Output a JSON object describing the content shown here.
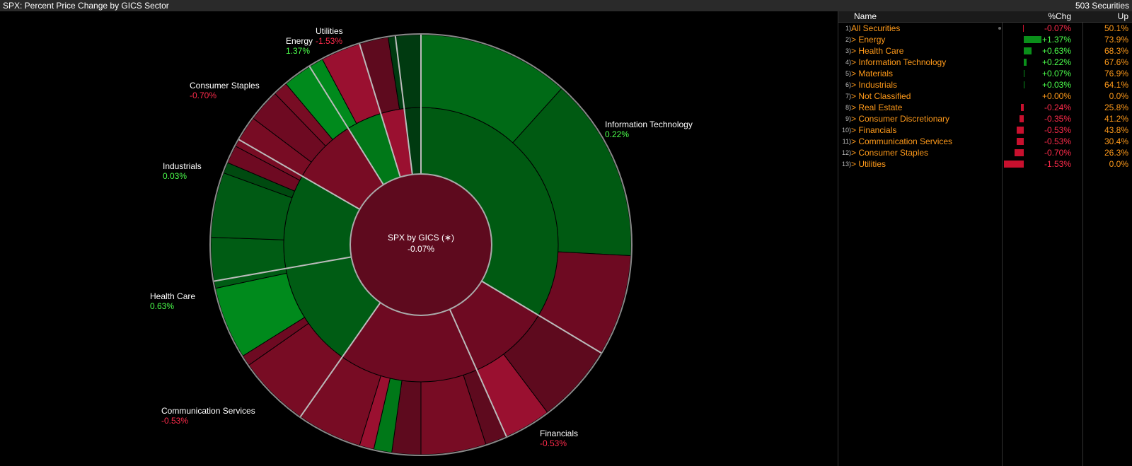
{
  "header": {
    "title": "SPX: Percent Price Change by GICS Sector",
    "count": "503 Securities"
  },
  "center": {
    "label": "SPX by GICS (∗)",
    "value": "-0.07%"
  },
  "chart_data": {
    "type": "sunburst",
    "rings": [
      {
        "sector": "Information Technology",
        "change": 0.22
      },
      {
        "sector": "Financials",
        "change": -0.53
      },
      {
        "sector": "Communication Services",
        "change": -0.53
      },
      {
        "sector": "Health Care",
        "change": 0.63
      },
      {
        "sector": "Industrials",
        "change": 0.03
      },
      {
        "sector": "Consumer Staples",
        "change": -0.7
      },
      {
        "sector": "Energy",
        "change": 1.37
      },
      {
        "sector": "Utilities",
        "change": -1.53
      }
    ],
    "labels": [
      {
        "name": "Information Technology",
        "value": "0.22%",
        "sign": "pos"
      },
      {
        "name": "Financials",
        "value": "-0.53%",
        "sign": "neg"
      },
      {
        "name": "Communication Services",
        "value": "-0.53%",
        "sign": "neg"
      },
      {
        "name": "Health Care",
        "value": "0.63%",
        "sign": "pos"
      },
      {
        "name": "Industrials",
        "value": "0.03%",
        "sign": "pos"
      },
      {
        "name": "Consumer Staples",
        "value": "-0.70%",
        "sign": "neg"
      },
      {
        "name": "Energy",
        "value": "1.37%",
        "sign": "pos"
      },
      {
        "name": "Utilities",
        "value": "-1.53%",
        "sign": "neg"
      }
    ]
  },
  "table": {
    "columns": {
      "name": "Name",
      "chg": "%Chg",
      "up": "Up"
    },
    "rows": [
      {
        "idx": "1)",
        "name": "All Securities",
        "chg": "-0.07%",
        "up": "50.1%",
        "value": -0.07,
        "sign": "neg"
      },
      {
        "idx": "2)",
        "name": "> Energy",
        "chg": "+1.37%",
        "up": "73.9%",
        "value": 1.37,
        "sign": "pos"
      },
      {
        "idx": "3)",
        "name": "> Health Care",
        "chg": "+0.63%",
        "up": "68.3%",
        "value": 0.63,
        "sign": "pos"
      },
      {
        "idx": "4)",
        "name": "> Information Technology",
        "chg": "+0.22%",
        "up": "67.6%",
        "value": 0.22,
        "sign": "pos"
      },
      {
        "idx": "5)",
        "name": "> Materials",
        "chg": "+0.07%",
        "up": "76.9%",
        "value": 0.07,
        "sign": "pos"
      },
      {
        "idx": "6)",
        "name": "> Industrials",
        "chg": "+0.03%",
        "up": "64.1%",
        "value": 0.03,
        "sign": "pos"
      },
      {
        "idx": "7)",
        "name": "> Not Classified",
        "chg": "+0.00%",
        "up": "0.0%",
        "value": 0.0,
        "sign": "zero"
      },
      {
        "idx": "8)",
        "name": "> Real Estate",
        "chg": "-0.24%",
        "up": "25.8%",
        "value": -0.24,
        "sign": "neg"
      },
      {
        "idx": "9)",
        "name": "> Consumer Discretionary",
        "chg": "-0.35%",
        "up": "41.2%",
        "value": -0.35,
        "sign": "neg"
      },
      {
        "idx": "10)",
        "name": "> Financials",
        "chg": "-0.53%",
        "up": "43.8%",
        "value": -0.53,
        "sign": "neg"
      },
      {
        "idx": "11)",
        "name": "> Communication Services",
        "chg": "-0.53%",
        "up": "30.4%",
        "value": -0.53,
        "sign": "neg"
      },
      {
        "idx": "12)",
        "name": "> Consumer Staples",
        "chg": "-0.70%",
        "up": "26.3%",
        "value": -0.7,
        "sign": "neg"
      },
      {
        "idx": "13)",
        "name": "> Utilities",
        "chg": "-1.53%",
        "up": "0.0%",
        "value": -1.53,
        "sign": "neg"
      }
    ]
  },
  "colors": {
    "positive": "#4cff4c",
    "negative": "#ff2b4b",
    "accent": "#ff9a1a",
    "barPositive": "#0a8f1a",
    "barNegative": "#c8102e"
  }
}
